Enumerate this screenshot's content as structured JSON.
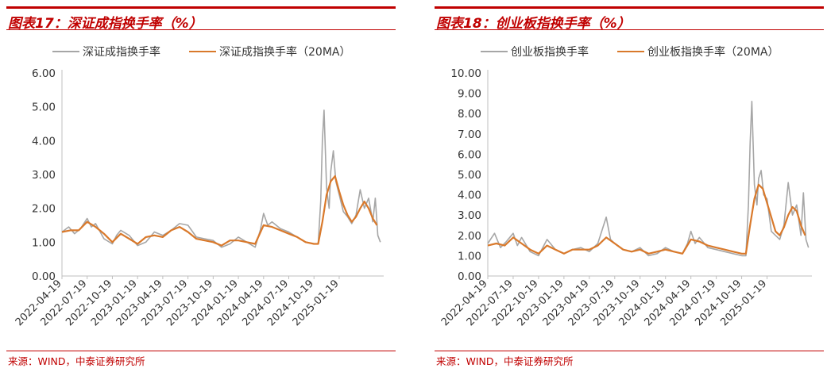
{
  "chart_data": [
    {
      "type": "line",
      "title": "图表17：深证成指换手率（%）",
      "source": "来源：WIND，中泰证券研究所",
      "legend": [
        "深证成指换手率",
        "深证成指换手率（20MA）"
      ],
      "legend_placement": "top",
      "ylim": [
        0,
        6
      ],
      "yticks": [
        "0.00",
        "1.00",
        "2.00",
        "3.00",
        "4.00",
        "5.00",
        "6.00"
      ],
      "xticks": [
        "2022-04-19",
        "2022-07-19",
        "2022-10-19",
        "2023-01-19",
        "2023-04-19",
        "2023-07-19",
        "2023-10-19",
        "2024-01-19",
        "2024-04-19",
        "2024-07-19",
        "2024-10-19",
        "2025-01-19"
      ],
      "x_end_month": 13.3,
      "grid": false,
      "series": [
        {
          "name": "深证成指换手率",
          "color": "#a6a6a6",
          "points": [
            [
              0,
              1.3
            ],
            [
              0.8,
              1.45
            ],
            [
              1.5,
              1.25
            ],
            [
              2.2,
              1.4
            ],
            [
              3,
              1.7
            ],
            [
              3.5,
              1.45
            ],
            [
              4,
              1.55
            ],
            [
              5,
              1.1
            ],
            [
              6,
              0.95
            ],
            [
              6.5,
              1.2
            ],
            [
              7,
              1.35
            ],
            [
              8,
              1.2
            ],
            [
              9,
              0.9
            ],
            [
              10,
              1.0
            ],
            [
              11,
              1.3
            ],
            [
              12,
              1.2
            ],
            [
              13,
              1.35
            ],
            [
              14,
              1.55
            ],
            [
              15,
              1.5
            ],
            [
              16,
              1.15
            ],
            [
              17,
              1.1
            ],
            [
              18,
              1.05
            ],
            [
              19,
              0.85
            ],
            [
              20,
              0.95
            ],
            [
              21,
              1.15
            ],
            [
              22,
              1.0
            ],
            [
              23,
              0.85
            ],
            [
              23.6,
              1.35
            ],
            [
              24,
              1.85
            ],
            [
              24.5,
              1.5
            ],
            [
              25,
              1.6
            ],
            [
              26,
              1.4
            ],
            [
              27,
              1.3
            ],
            [
              28,
              1.15
            ],
            [
              29,
              1.0
            ],
            [
              30,
              0.95
            ],
            [
              30.5,
              0.95
            ],
            [
              30.8,
              2.2
            ],
            [
              31,
              4.0
            ],
            [
              31.2,
              4.9
            ],
            [
              31.5,
              2.6
            ],
            [
              31.8,
              2.0
            ],
            [
              32,
              3.1
            ],
            [
              32.3,
              3.7
            ],
            [
              32.6,
              2.8
            ],
            [
              33,
              2.4
            ],
            [
              33.5,
              1.9
            ],
            [
              34,
              1.75
            ],
            [
              34.5,
              1.55
            ],
            [
              35,
              1.8
            ],
            [
              35.5,
              2.55
            ],
            [
              36,
              2.0
            ],
            [
              36.5,
              2.3
            ],
            [
              37,
              1.6
            ],
            [
              37.3,
              2.3
            ],
            [
              37.6,
              1.2
            ],
            [
              37.9,
              1.0
            ]
          ]
        },
        {
          "name": "深证成指换手率（20MA）",
          "color": "#d9792b",
          "points": [
            [
              0,
              1.3
            ],
            [
              1,
              1.35
            ],
            [
              2,
              1.35
            ],
            [
              3,
              1.6
            ],
            [
              4,
              1.45
            ],
            [
              5,
              1.25
            ],
            [
              6,
              1.0
            ],
            [
              7,
              1.25
            ],
            [
              8,
              1.1
            ],
            [
              9,
              0.95
            ],
            [
              10,
              1.15
            ],
            [
              11,
              1.2
            ],
            [
              12,
              1.15
            ],
            [
              13,
              1.35
            ],
            [
              14,
              1.45
            ],
            [
              15,
              1.3
            ],
            [
              16,
              1.1
            ],
            [
              17,
              1.05
            ],
            [
              18,
              1.0
            ],
            [
              19,
              0.9
            ],
            [
              20,
              1.05
            ],
            [
              21,
              1.05
            ],
            [
              22,
              1.0
            ],
            [
              23,
              0.95
            ],
            [
              24,
              1.5
            ],
            [
              25,
              1.45
            ],
            [
              26,
              1.35
            ],
            [
              27,
              1.25
            ],
            [
              28,
              1.15
            ],
            [
              29,
              1.0
            ],
            [
              30,
              0.95
            ],
            [
              30.5,
              0.95
            ],
            [
              31,
              1.6
            ],
            [
              31.5,
              2.4
            ],
            [
              32,
              2.8
            ],
            [
              32.5,
              2.95
            ],
            [
              33,
              2.5
            ],
            [
              33.5,
              2.1
            ],
            [
              34,
              1.8
            ],
            [
              34.5,
              1.6
            ],
            [
              35,
              1.75
            ],
            [
              35.5,
              2.0
            ],
            [
              36,
              2.2
            ],
            [
              36.5,
              2.0
            ],
            [
              37,
              1.7
            ],
            [
              37.5,
              1.5
            ]
          ]
        }
      ]
    },
    {
      "type": "line",
      "title": "图表18：创业板指换手率（%）",
      "source": "来源：WIND，中泰证券研究所",
      "legend": [
        "创业板指换手率",
        "创业板指换手率（20MA）"
      ],
      "legend_placement": "top",
      "ylim": [
        0,
        10
      ],
      "yticks": [
        "0.00",
        "1.00",
        "2.00",
        "3.00",
        "4.00",
        "5.00",
        "6.00",
        "7.00",
        "8.00",
        "9.00",
        "10.00"
      ],
      "xticks": [
        "2022-04-19",
        "2022-07-19",
        "2022-10-19",
        "2023-01-19",
        "2023-04-19",
        "2023-07-19",
        "2023-10-19",
        "2024-01-19",
        "2024-04-19",
        "2024-07-19",
        "2024-10-19",
        "2025-01-19"
      ],
      "x_end_month": 13.3,
      "grid": false,
      "series": [
        {
          "name": "创业板指换手率",
          "color": "#a6a6a6",
          "points": [
            [
              0,
              1.6
            ],
            [
              0.8,
              2.1
            ],
            [
              1.5,
              1.4
            ],
            [
              2.2,
              1.7
            ],
            [
              3,
              2.1
            ],
            [
              3.5,
              1.5
            ],
            [
              4,
              1.9
            ],
            [
              5,
              1.2
            ],
            [
              6,
              1.0
            ],
            [
              6.5,
              1.4
            ],
            [
              7,
              1.8
            ],
            [
              8,
              1.3
            ],
            [
              9,
              1.1
            ],
            [
              10,
              1.3
            ],
            [
              11,
              1.4
            ],
            [
              12,
              1.2
            ],
            [
              13,
              1.6
            ],
            [
              14,
              2.9
            ],
            [
              14.5,
              1.8
            ],
            [
              15,
              1.6
            ],
            [
              16,
              1.3
            ],
            [
              17,
              1.2
            ],
            [
              18,
              1.4
            ],
            [
              19,
              1.0
            ],
            [
              20,
              1.1
            ],
            [
              21,
              1.4
            ],
            [
              22,
              1.2
            ],
            [
              23,
              1.1
            ],
            [
              23.6,
              1.6
            ],
            [
              24,
              2.2
            ],
            [
              24.5,
              1.6
            ],
            [
              25,
              1.9
            ],
            [
              26,
              1.4
            ],
            [
              27,
              1.3
            ],
            [
              28,
              1.2
            ],
            [
              29,
              1.1
            ],
            [
              30,
              1.0
            ],
            [
              30.5,
              1.0
            ],
            [
              30.8,
              3.5
            ],
            [
              31,
              6.5
            ],
            [
              31.2,
              8.6
            ],
            [
              31.5,
              4.5
            ],
            [
              31.8,
              3.5
            ],
            [
              32,
              4.8
            ],
            [
              32.3,
              5.2
            ],
            [
              32.6,
              4.0
            ],
            [
              33,
              3.8
            ],
            [
              33.5,
              2.2
            ],
            [
              34,
              2.0
            ],
            [
              34.5,
              1.8
            ],
            [
              35,
              2.5
            ],
            [
              35.5,
              4.6
            ],
            [
              36,
              3.0
            ],
            [
              36.5,
              3.5
            ],
            [
              37,
              2.0
            ],
            [
              37.3,
              4.1
            ],
            [
              37.6,
              1.8
            ],
            [
              37.9,
              1.4
            ]
          ]
        },
        {
          "name": "创业板指换手率（20MA）",
          "color": "#d9792b",
          "points": [
            [
              0,
              1.5
            ],
            [
              1,
              1.6
            ],
            [
              2,
              1.5
            ],
            [
              3,
              1.9
            ],
            [
              4,
              1.6
            ],
            [
              5,
              1.3
            ],
            [
              6,
              1.1
            ],
            [
              7,
              1.5
            ],
            [
              8,
              1.3
            ],
            [
              9,
              1.1
            ],
            [
              10,
              1.3
            ],
            [
              11,
              1.3
            ],
            [
              12,
              1.3
            ],
            [
              13,
              1.5
            ],
            [
              14,
              1.9
            ],
            [
              15,
              1.6
            ],
            [
              16,
              1.3
            ],
            [
              17,
              1.2
            ],
            [
              18,
              1.3
            ],
            [
              19,
              1.1
            ],
            [
              20,
              1.2
            ],
            [
              21,
              1.3
            ],
            [
              22,
              1.2
            ],
            [
              23,
              1.1
            ],
            [
              24,
              1.8
            ],
            [
              25,
              1.7
            ],
            [
              26,
              1.5
            ],
            [
              27,
              1.4
            ],
            [
              28,
              1.3
            ],
            [
              29,
              1.2
            ],
            [
              30,
              1.1
            ],
            [
              30.5,
              1.1
            ],
            [
              31,
              2.5
            ],
            [
              31.5,
              3.8
            ],
            [
              32,
              4.5
            ],
            [
              32.5,
              4.3
            ],
            [
              33,
              3.6
            ],
            [
              33.5,
              2.9
            ],
            [
              34,
              2.2
            ],
            [
              34.5,
              2.0
            ],
            [
              35,
              2.4
            ],
            [
              35.5,
              3.0
            ],
            [
              36,
              3.4
            ],
            [
              36.5,
              3.2
            ],
            [
              37,
              2.5
            ],
            [
              37.5,
              2.0
            ]
          ]
        }
      ]
    }
  ]
}
